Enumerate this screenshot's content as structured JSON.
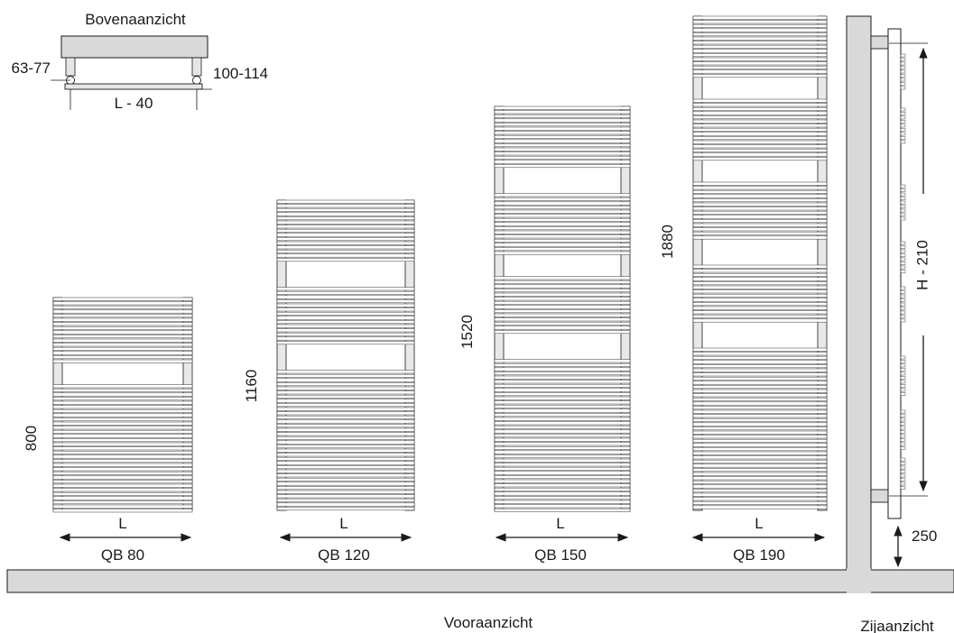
{
  "labels": {
    "top_view_title": "Bovenaanzicht",
    "top_dim_left": "63-77",
    "top_dim_right": "100-114",
    "top_width": "L - 40",
    "front_view_caption": "Vooraanzicht",
    "side_view_caption": "Zijaanzicht",
    "side_height": "H - 210",
    "side_floor_gap": "250",
    "width_symbol": "L"
  },
  "models": [
    {
      "name": "QB 80",
      "height": "800",
      "width_label": "L"
    },
    {
      "name": "QB 120",
      "height": "1160",
      "width_label": "L"
    },
    {
      "name": "QB 150",
      "height": "1520",
      "width_label": "L"
    },
    {
      "name": "QB 190",
      "height": "1880",
      "width_label": "L"
    }
  ],
  "colors": {
    "structure_fill": "#d9d9d9",
    "line": "#1a1a1a",
    "bar_fill": "#ffffff",
    "bar_line": "#444444"
  }
}
